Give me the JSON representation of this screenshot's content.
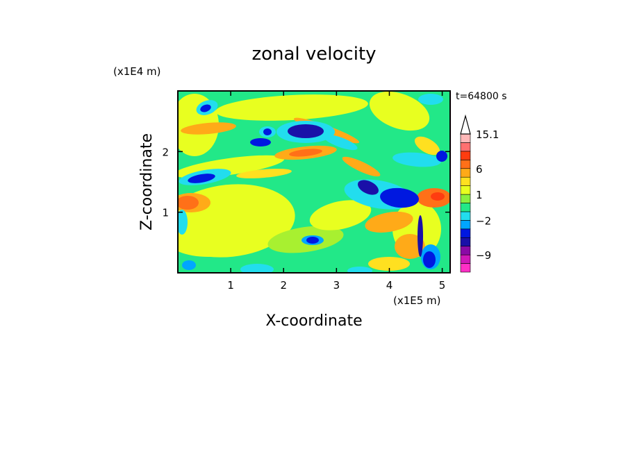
{
  "chart_data": {
    "type": "heatmap",
    "title": "zonal velocity",
    "xlabel": "X-coordinate",
    "ylabel": "Z-coordinate",
    "x_unit": "(x1E5 m)",
    "y_unit": "(x1E4 m)",
    "time_label": "t=64800 s",
    "xlim": [
      0,
      5.15
    ],
    "ylim": [
      0,
      3.0
    ],
    "x_ticks": [
      1,
      2,
      3,
      4,
      5
    ],
    "y_ticks": [
      1,
      2
    ],
    "x_tick_labels": [
      "1",
      "2",
      "3",
      "4",
      "5"
    ],
    "y_tick_labels": [
      "1",
      "2"
    ],
    "colorbar": {
      "levels": [
        -12,
        -10.5,
        -9,
        -7,
        -5,
        -3.5,
        -2,
        -1,
        0,
        1,
        2,
        3.5,
        6,
        8,
        10,
        12.5,
        15.1
      ],
      "colors": [
        "#ff2fc6",
        "#cf18b8",
        "#8a0aa6",
        "#1a10a8",
        "#0018e0",
        "#00a6ff",
        "#22ddee",
        "#22e888",
        "#88f040",
        "#e8ff20",
        "#ffe020",
        "#ffaa18",
        "#ff7018",
        "#ff3c10",
        "#ff7070",
        "#ffb8b8",
        "#ffffff"
      ],
      "tick_values": [
        15.1,
        6,
        1,
        -2,
        -9
      ],
      "tick_labels": [
        "15.1",
        "6",
        "1",
        "−2",
        "−9"
      ],
      "extend": "max"
    },
    "grid": false
  }
}
